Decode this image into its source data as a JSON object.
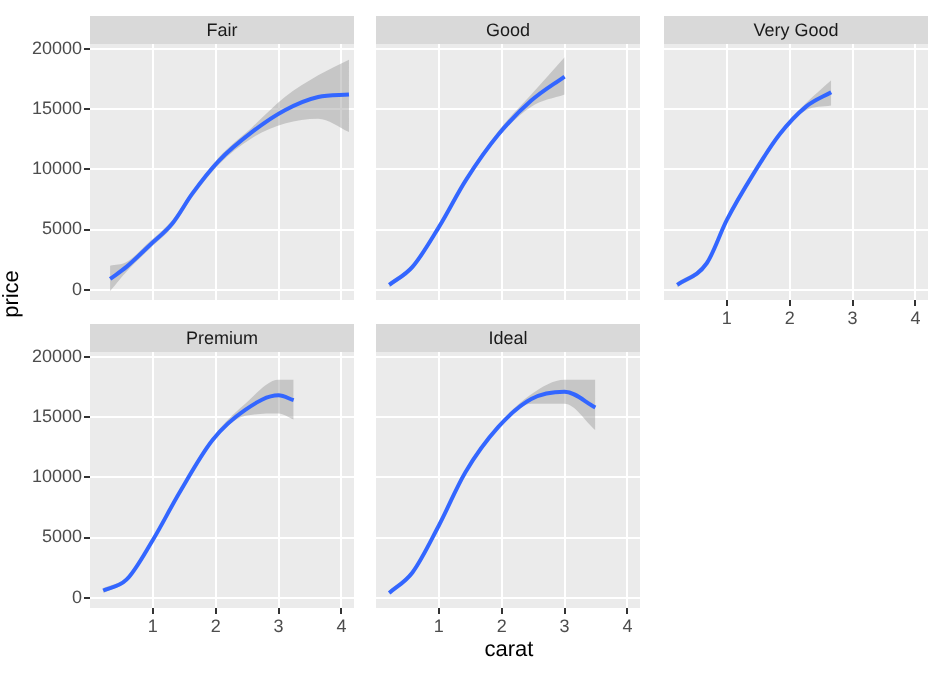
{
  "chart_data": [
    {
      "type": "line",
      "title": "Fair",
      "ylabel": "price",
      "x": [
        0.32,
        0.58,
        0.95,
        1.31,
        1.63,
        2.05,
        2.58,
        3.1,
        3.63,
        4.12
      ],
      "xlim": [
        0,
        4.2
      ],
      "xticks": [
        1,
        2,
        3,
        4
      ],
      "ylim": [
        -850,
        20400
      ],
      "yticks": [
        0,
        5000,
        10000,
        15000,
        20000
      ],
      "grid": true,
      "tick_labels": "y",
      "series": [
        {
          "color": "#3366ff",
          "values": [
            900,
            1900,
            3700,
            5500,
            8000,
            10700,
            13100,
            14900,
            16000,
            16200
          ],
          "lower": [
            -100,
            1500,
            3400,
            5200,
            7700,
            10400,
            12600,
            13800,
            14200,
            13100
          ],
          "upper": [
            2000,
            2300,
            4000,
            5800,
            8200,
            11000,
            13500,
            16000,
            17800,
            19100
          ]
        }
      ]
    },
    {
      "type": "line",
      "title": "Good",
      "x": [
        0.21,
        0.58,
        1.0,
        1.43,
        1.95,
        2.47,
        3.0
      ],
      "xlim": [
        0,
        4.2
      ],
      "xticks": [
        1,
        2,
        3,
        4
      ],
      "ylim": [
        -850,
        20400
      ],
      "yticks": [
        0,
        5000,
        10000,
        15000,
        20000
      ],
      "grid": true,
      "tick_labels": false,
      "series": [
        {
          "color": "#3366ff",
          "values": [
            400,
            1900,
            5200,
            9100,
            12900,
            15700,
            17700
          ],
          "lower": [
            200,
            1700,
            5000,
            8900,
            12700,
            15200,
            16200
          ],
          "upper": [
            600,
            2100,
            5400,
            9300,
            13200,
            16200,
            19300
          ]
        }
      ]
    },
    {
      "type": "line",
      "title": "Very Good",
      "x": [
        0.21,
        0.68,
        1.0,
        1.42,
        1.84,
        2.26,
        2.66
      ],
      "xlim": [
        0,
        4.2
      ],
      "xticks": [
        1,
        2,
        3,
        4
      ],
      "ylim": [
        -850,
        20400
      ],
      "yticks": [
        0,
        5000,
        10000,
        15000,
        20000
      ],
      "grid": true,
      "tick_labels": "x",
      "series": [
        {
          "color": "#3366ff",
          "values": [
            400,
            2200,
            5800,
            9600,
            12900,
            15200,
            16400
          ],
          "lower": [
            200,
            2000,
            5600,
            9500,
            12800,
            14900,
            15300
          ],
          "upper": [
            600,
            2400,
            6000,
            9800,
            13100,
            15500,
            17400
          ]
        }
      ]
    },
    {
      "type": "line",
      "title": "Premium",
      "x": [
        0.21,
        0.58,
        1.0,
        1.42,
        1.95,
        2.47,
        3.0,
        3.24
      ],
      "xlim": [
        0,
        4.2
      ],
      "xticks": [
        1,
        2,
        3,
        4
      ],
      "ylim": [
        -850,
        20400
      ],
      "yticks": [
        0,
        5000,
        10000,
        15000,
        20000
      ],
      "grid": true,
      "series": [
        {
          "color": "#3366ff",
          "values": [
            600,
            1500,
            4800,
            8700,
            13100,
            15600,
            16800,
            16400
          ],
          "lower": [
            400,
            1400,
            4700,
            8500,
            12900,
            15100,
            15300,
            14800
          ],
          "upper": [
            800,
            1700,
            5000,
            8900,
            13300,
            16100,
            18100,
            18100
          ]
        }
      ]
    },
    {
      "type": "line",
      "title": "Ideal",
      "xlabel": "carat",
      "x": [
        0.21,
        0.58,
        1.0,
        1.42,
        1.95,
        2.47,
        3.0,
        3.49
      ],
      "xlim": [
        0,
        4.2
      ],
      "xticks": [
        1,
        2,
        3,
        4
      ],
      "ylim": [
        -850,
        20400
      ],
      "yticks": [
        0,
        5000,
        10000,
        15000,
        20000
      ],
      "grid": true,
      "tick_labels": "x",
      "series": [
        {
          "color": "#3366ff",
          "values": [
            400,
            2100,
            6000,
            10400,
            14200,
            16500,
            17100,
            15800
          ],
          "lower": [
            300,
            1900,
            5800,
            10200,
            14000,
            16100,
            16100,
            13900
          ],
          "upper": [
            600,
            2300,
            6200,
            10600,
            14400,
            16900,
            18100,
            18100
          ]
        }
      ]
    }
  ]
}
